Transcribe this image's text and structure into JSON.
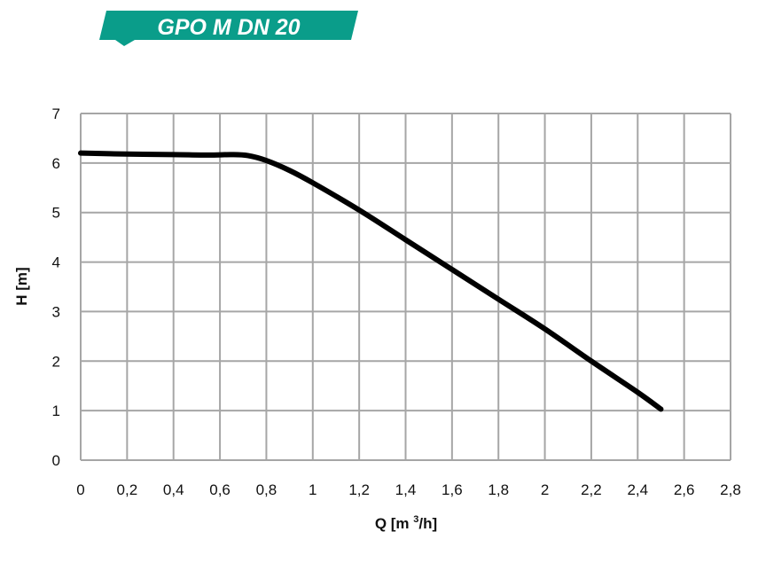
{
  "banner": {
    "text": "GPO M DN 20",
    "color": "#0a9d8a"
  },
  "chart_data": {
    "type": "line",
    "title": "GPO M DN 20",
    "xlabel": "Q [m³/h]",
    "ylabel": "H [m]",
    "xlim": [
      0,
      2.8
    ],
    "ylim": [
      0,
      7
    ],
    "grid": true,
    "x_ticks": [
      "0",
      "0,2",
      "0,4",
      "0,6",
      "0,8",
      "1",
      "1,2",
      "1,4",
      "1,6",
      "1,8",
      "2",
      "2,2",
      "2,4",
      "2,6",
      "2,8"
    ],
    "y_ticks": [
      "0",
      "1",
      "2",
      "3",
      "4",
      "5",
      "6",
      "7"
    ],
    "series": [
      {
        "color": "#000000",
        "x": [
          0,
          0.2,
          0.4,
          0.55,
          0.65,
          0.72,
          0.8,
          0.9,
          1.0,
          1.2,
          1.4,
          1.6,
          1.8,
          2.0,
          2.2,
          2.4,
          2.5
        ],
        "y": [
          6.2,
          6.18,
          6.17,
          6.16,
          6.17,
          6.15,
          6.05,
          5.85,
          5.6,
          5.05,
          4.45,
          3.85,
          3.25,
          2.65,
          2.0,
          1.37,
          1.03
        ]
      }
    ]
  }
}
